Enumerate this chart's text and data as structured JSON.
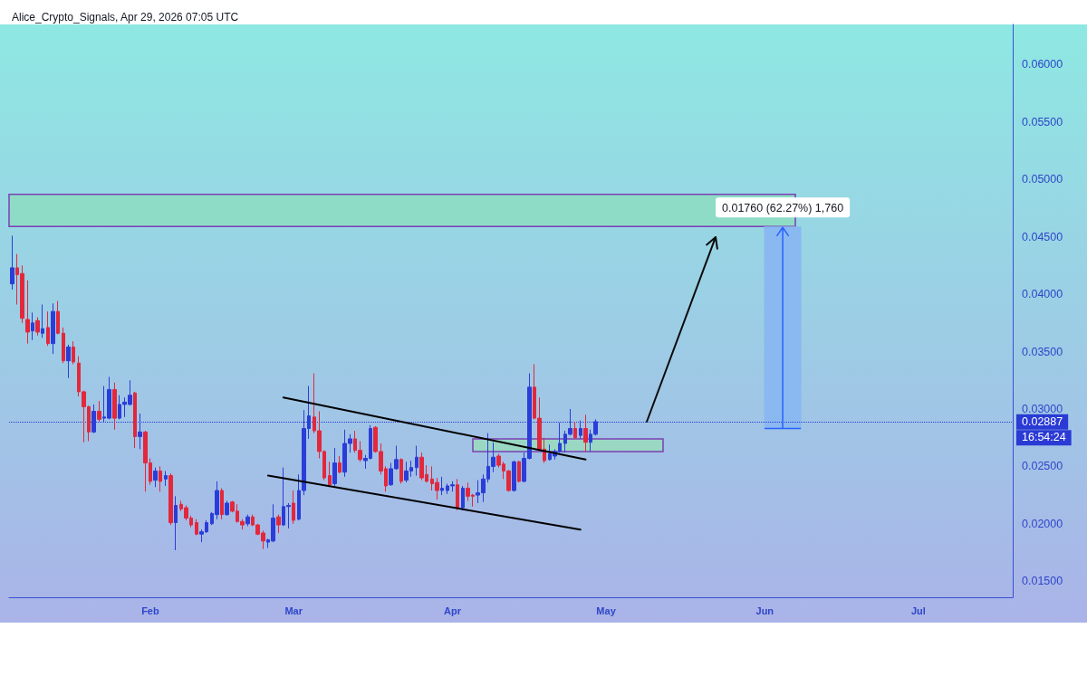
{
  "chart_data": {
    "type": "candlestick",
    "title": "Alice_Crypto_Signals, Apr 29, 2026 07:05 UTC",
    "x": [
      "2026-01-05",
      "2026-01-06",
      "2026-01-07",
      "2026-01-08",
      "2026-01-09",
      "2026-01-10",
      "2026-01-11",
      "2026-01-12",
      "2026-01-13",
      "2026-01-14",
      "2026-01-15",
      "2026-01-16",
      "2026-01-17",
      "2026-01-18",
      "2026-01-19",
      "2026-01-20",
      "2026-01-21",
      "2026-01-22",
      "2026-01-23",
      "2026-01-24",
      "2026-01-25",
      "2026-01-26",
      "2026-01-27",
      "2026-01-28",
      "2026-01-29",
      "2026-01-30",
      "2026-01-31",
      "2026-02-01",
      "2026-02-02",
      "2026-02-03",
      "2026-02-04",
      "2026-02-05",
      "2026-02-06",
      "2026-02-07",
      "2026-02-08",
      "2026-02-09",
      "2026-02-10",
      "2026-02-11",
      "2026-02-12",
      "2026-02-13",
      "2026-02-14",
      "2026-02-15",
      "2026-02-16",
      "2026-02-17",
      "2026-02-18",
      "2026-02-19",
      "2026-02-20",
      "2026-02-21",
      "2026-02-22",
      "2026-02-23",
      "2026-02-24",
      "2026-02-25",
      "2026-02-26",
      "2026-02-27",
      "2026-02-28",
      "2026-03-01",
      "2026-03-02",
      "2026-03-03",
      "2026-03-04",
      "2026-03-05",
      "2026-03-06",
      "2026-03-07",
      "2026-03-08",
      "2026-03-09",
      "2026-03-10",
      "2026-03-11",
      "2026-03-12",
      "2026-03-13",
      "2026-03-14",
      "2026-03-15",
      "2026-03-16",
      "2026-03-17",
      "2026-03-18",
      "2026-03-19",
      "2026-03-20",
      "2026-03-21",
      "2026-03-22",
      "2026-03-23",
      "2026-03-24",
      "2026-03-25",
      "2026-03-26",
      "2026-03-27",
      "2026-03-28",
      "2026-03-29",
      "2026-03-30",
      "2026-03-31",
      "2026-04-01",
      "2026-04-02",
      "2026-04-03",
      "2026-04-04",
      "2026-04-05",
      "2026-04-06",
      "2026-04-07",
      "2026-04-08",
      "2026-04-09",
      "2026-04-10",
      "2026-04-11",
      "2026-04-12",
      "2026-04-13",
      "2026-04-14",
      "2026-04-15",
      "2026-04-16",
      "2026-04-17",
      "2026-04-18",
      "2026-04-19",
      "2026-04-20",
      "2026-04-21",
      "2026-04-22",
      "2026-04-23",
      "2026-04-24",
      "2026-04-25",
      "2026-04-26",
      "2026-04-27",
      "2026-04-28",
      "2026-04-29"
    ],
    "ohlc": [
      [
        0.0409,
        0.0451,
        0.0404,
        0.0423
      ],
      [
        0.0423,
        0.0435,
        0.0391,
        0.0417
      ],
      [
        0.0418,
        0.0425,
        0.0375,
        0.0379
      ],
      [
        0.0378,
        0.0412,
        0.0357,
        0.0367
      ],
      [
        0.0368,
        0.0384,
        0.036,
        0.0375
      ],
      [
        0.0377,
        0.038,
        0.0364,
        0.0367
      ],
      [
        0.0366,
        0.0391,
        0.0362,
        0.037
      ],
      [
        0.0371,
        0.0385,
        0.0355,
        0.0357
      ],
      [
        0.0357,
        0.0392,
        0.0348,
        0.0385
      ],
      [
        0.0385,
        0.0394,
        0.0365,
        0.0366
      ],
      [
        0.0366,
        0.0371,
        0.034,
        0.0342
      ],
      [
        0.0342,
        0.0356,
        0.0327,
        0.0354
      ],
      [
        0.0354,
        0.0359,
        0.0339,
        0.0341
      ],
      [
        0.034,
        0.0346,
        0.0311,
        0.0315
      ],
      [
        0.0315,
        0.0316,
        0.0271,
        0.0302
      ],
      [
        0.0302,
        0.0303,
        0.0272,
        0.028
      ],
      [
        0.028,
        0.0304,
        0.0279,
        0.0298
      ],
      [
        0.0298,
        0.0307,
        0.0289,
        0.0291
      ],
      [
        0.0292,
        0.032,
        0.0289,
        0.0293
      ],
      [
        0.0292,
        0.0328,
        0.0291,
        0.0317
      ],
      [
        0.0317,
        0.0323,
        0.0282,
        0.0292
      ],
      [
        0.0292,
        0.0312,
        0.0291,
        0.0304
      ],
      [
        0.0304,
        0.031,
        0.0293,
        0.0306
      ],
      [
        0.0304,
        0.0325,
        0.0303,
        0.0312
      ],
      [
        0.0314,
        0.0315,
        0.0266,
        0.0276
      ],
      [
        0.0276,
        0.0296,
        0.0265,
        0.028
      ],
      [
        0.028,
        0.0281,
        0.0228,
        0.0253
      ],
      [
        0.0253,
        0.0257,
        0.0234,
        0.0237
      ],
      [
        0.0238,
        0.0249,
        0.0232,
        0.0246
      ],
      [
        0.0246,
        0.025,
        0.0228,
        0.0237
      ],
      [
        0.0239,
        0.0246,
        0.0233,
        0.0242
      ],
      [
        0.0242,
        0.0244,
        0.0199,
        0.0201
      ],
      [
        0.0201,
        0.0224,
        0.0177,
        0.0216
      ],
      [
        0.0217,
        0.022,
        0.0211,
        0.0213
      ],
      [
        0.0214,
        0.0216,
        0.0203,
        0.0205
      ],
      [
        0.0205,
        0.0207,
        0.0197,
        0.0199
      ],
      [
        0.0201,
        0.0204,
        0.019,
        0.0191
      ],
      [
        0.0191,
        0.0195,
        0.0184,
        0.0193
      ],
      [
        0.0193,
        0.0203,
        0.0192,
        0.0201
      ],
      [
        0.02,
        0.021,
        0.0199,
        0.0209
      ],
      [
        0.0208,
        0.0237,
        0.0204,
        0.0229
      ],
      [
        0.0229,
        0.0231,
        0.0204,
        0.0208
      ],
      [
        0.0208,
        0.022,
        0.0207,
        0.0218
      ],
      [
        0.0219,
        0.022,
        0.021,
        0.0211
      ],
      [
        0.0211,
        0.0217,
        0.0201,
        0.0202
      ],
      [
        0.0202,
        0.0204,
        0.0195,
        0.0199
      ],
      [
        0.02,
        0.0208,
        0.0198,
        0.0206
      ],
      [
        0.0206,
        0.0208,
        0.0198,
        0.0199
      ],
      [
        0.0199,
        0.02,
        0.019,
        0.0191
      ],
      [
        0.0192,
        0.0194,
        0.0178,
        0.0185
      ],
      [
        0.0184,
        0.0187,
        0.0179,
        0.0186
      ],
      [
        0.0185,
        0.0217,
        0.0184,
        0.0205
      ],
      [
        0.0206,
        0.0208,
        0.0192,
        0.0199
      ],
      [
        0.0199,
        0.0249,
        0.0198,
        0.0215
      ],
      [
        0.0215,
        0.0218,
        0.0196,
        0.0216
      ],
      [
        0.0218,
        0.0229,
        0.02,
        0.0203
      ],
      [
        0.0204,
        0.0243,
        0.0203,
        0.0229
      ],
      [
        0.0229,
        0.0299,
        0.0225,
        0.0283
      ],
      [
        0.0283,
        0.032,
        0.0274,
        0.0294
      ],
      [
        0.0293,
        0.0331,
        0.0279,
        0.0281
      ],
      [
        0.0281,
        0.0298,
        0.0257,
        0.0263
      ],
      [
        0.0263,
        0.0264,
        0.0238,
        0.024
      ],
      [
        0.0242,
        0.0254,
        0.0232,
        0.0234
      ],
      [
        0.0235,
        0.0266,
        0.0233,
        0.0253
      ],
      [
        0.0253,
        0.0259,
        0.0244,
        0.0245
      ],
      [
        0.0245,
        0.0282,
        0.0241,
        0.027
      ],
      [
        0.027,
        0.0278,
        0.0262,
        0.0274
      ],
      [
        0.0274,
        0.0281,
        0.0262,
        0.0264
      ],
      [
        0.0264,
        0.0272,
        0.0254,
        0.0256
      ],
      [
        0.0255,
        0.026,
        0.0248,
        0.0257
      ],
      [
        0.0257,
        0.0286,
        0.0256,
        0.0283
      ],
      [
        0.0284,
        0.0285,
        0.0262,
        0.0263
      ],
      [
        0.0263,
        0.027,
        0.0243,
        0.0246
      ],
      [
        0.0248,
        0.025,
        0.0228,
        0.0233
      ],
      [
        0.0234,
        0.0253,
        0.0233,
        0.0248
      ],
      [
        0.0248,
        0.0268,
        0.0247,
        0.0256
      ],
      [
        0.0256,
        0.0257,
        0.0235,
        0.0237
      ],
      [
        0.0238,
        0.0254,
        0.0236,
        0.0246
      ],
      [
        0.0246,
        0.0255,
        0.0241,
        0.0249
      ],
      [
        0.0249,
        0.0268,
        0.0242,
        0.0258
      ],
      [
        0.0258,
        0.0262,
        0.0238,
        0.024
      ],
      [
        0.0243,
        0.0251,
        0.0236,
        0.0237
      ],
      [
        0.0239,
        0.025,
        0.0229,
        0.0235
      ],
      [
        0.0236,
        0.024,
        0.0221,
        0.0229
      ],
      [
        0.0229,
        0.0241,
        0.0225,
        0.0231
      ],
      [
        0.0229,
        0.0235,
        0.0226,
        0.0233
      ],
      [
        0.0233,
        0.0237,
        0.0228,
        0.0234
      ],
      [
        0.0234,
        0.0239,
        0.0212,
        0.0214
      ],
      [
        0.0214,
        0.0233,
        0.0212,
        0.0231
      ],
      [
        0.0231,
        0.0236,
        0.022,
        0.0224
      ],
      [
        0.0225,
        0.0226,
        0.0215,
        0.0224
      ],
      [
        0.0225,
        0.0238,
        0.0218,
        0.0227
      ],
      [
        0.0227,
        0.0243,
        0.0219,
        0.0239
      ],
      [
        0.0239,
        0.0279,
        0.0236,
        0.025
      ],
      [
        0.025,
        0.0271,
        0.0245,
        0.0258
      ],
      [
        0.0259,
        0.0261,
        0.0249,
        0.0251
      ],
      [
        0.0252,
        0.0254,
        0.0239,
        0.0246
      ],
      [
        0.0246,
        0.0247,
        0.0228,
        0.0229
      ],
      [
        0.0229,
        0.0255,
        0.0228,
        0.0254
      ],
      [
        0.0254,
        0.0255,
        0.0236,
        0.0237
      ],
      [
        0.0237,
        0.0262,
        0.0236,
        0.0257
      ],
      [
        0.0257,
        0.0331,
        0.0256,
        0.0319
      ],
      [
        0.0319,
        0.0339,
        0.0291,
        0.0292
      ],
      [
        0.0292,
        0.031,
        0.0264,
        0.0265
      ],
      [
        0.0265,
        0.0275,
        0.0253,
        0.0255
      ],
      [
        0.0256,
        0.0269,
        0.0255,
        0.0261
      ],
      [
        0.0259,
        0.0265,
        0.0256,
        0.0263
      ],
      [
        0.0263,
        0.0288,
        0.0262,
        0.027
      ],
      [
        0.027,
        0.0281,
        0.0262,
        0.0278
      ],
      [
        0.0278,
        0.03,
        0.0277,
        0.0283
      ],
      [
        0.0283,
        0.0289,
        0.0274,
        0.0275
      ],
      [
        0.0277,
        0.029,
        0.0274,
        0.0283
      ],
      [
        0.0283,
        0.0295,
        0.0263,
        0.0271
      ],
      [
        0.0271,
        0.0282,
        0.0263,
        0.0278
      ],
      [
        0.0278,
        0.0291,
        0.0277,
        0.0289
      ]
    ],
    "colors": [
      "#2b3dd8",
      "#e3283c",
      "#e3283c",
      "#e3283c",
      "#2b3dd8",
      "#e3283c",
      "#2b3dd8",
      "#e3283c",
      "#2b3dd8",
      "#e3283c",
      "#e3283c",
      "#2b3dd8",
      "#e3283c",
      "#e3283c",
      "#e3283c",
      "#e3283c",
      "#2b3dd8",
      "#e3283c",
      "#2b3dd8",
      "#2b3dd8",
      "#e3283c",
      "#2b3dd8",
      "#2b3dd8",
      "#2b3dd8",
      "#e3283c",
      "#2b3dd8",
      "#e3283c",
      "#e3283c",
      "#2b3dd8",
      "#e3283c",
      "#2b3dd8",
      "#e3283c",
      "#2b3dd8",
      "#e3283c",
      "#e3283c",
      "#e3283c",
      "#e3283c",
      "#2b3dd8",
      "#2b3dd8",
      "#2b3dd8",
      "#2b3dd8",
      "#e3283c",
      "#2b3dd8",
      "#e3283c",
      "#e3283c",
      "#e3283c",
      "#2b3dd8",
      "#e3283c",
      "#e3283c",
      "#e3283c",
      "#2b3dd8",
      "#2b3dd8",
      "#e3283c",
      "#2b3dd8",
      "#2b3dd8",
      "#e3283c",
      "#2b3dd8",
      "#2b3dd8",
      "#2b3dd8",
      "#e3283c",
      "#e3283c",
      "#e3283c",
      "#e3283c",
      "#2b3dd8",
      "#e3283c",
      "#2b3dd8",
      "#2b3dd8",
      "#e3283c",
      "#e3283c",
      "#2b3dd8",
      "#2b3dd8",
      "#e3283c",
      "#e3283c",
      "#e3283c",
      "#2b3dd8",
      "#2b3dd8",
      "#e3283c",
      "#2b3dd8",
      "#2b3dd8",
      "#2b3dd8",
      "#e3283c",
      "#e3283c",
      "#e3283c",
      "#e3283c",
      "#2b3dd8",
      "#2b3dd8",
      "#2b3dd8",
      "#e3283c",
      "#2b3dd8",
      "#e3283c",
      "#e3283c",
      "#2b3dd8",
      "#2b3dd8",
      "#2b3dd8",
      "#2b3dd8",
      "#e3283c",
      "#e3283c",
      "#e3283c",
      "#2b3dd8",
      "#e3283c",
      "#2b3dd8",
      "#2b3dd8",
      "#e3283c",
      "#e3283c",
      "#e3283c",
      "#2b3dd8",
      "#2b3dd8",
      "#2b3dd8",
      "#2b3dd8",
      "#2b3dd8",
      "#e3283c",
      "#2b3dd8",
      "#e3283c",
      "#2b3dd8",
      "#2b3dd8"
    ],
    "series": [
      {
        "type": "line",
        "x": [
          "2026-02-27",
          "2026-04-27"
        ],
        "values": [
          0.031,
          0.0256
        ],
        "color": "#000000"
      },
      {
        "type": "line",
        "x": [
          "2026-02-24",
          "2026-04-26"
        ],
        "values": [
          0.0242,
          0.0195
        ],
        "color": "#000000"
      },
      {
        "type": "bar",
        "x": [
          "2026-06-04T12:00"
        ],
        "base": [
          0.0283
        ],
        "values": [
          0.0176
        ],
        "value_labels": [
          "0.01760 (62.27%) 1,760"
        ],
        "color": "#8ab8f0"
      }
    ],
    "xlim": [
      "2026-01-04T10:00",
      "2026-07-19T10:00"
    ],
    "xticks": [
      {
        "value": "2026-02-01",
        "label": "Feb"
      },
      {
        "value": "2026-03-01",
        "label": "Mar"
      },
      {
        "value": "2026-04-01",
        "label": "Apr"
      },
      {
        "value": "2026-05-01",
        "label": "May"
      },
      {
        "value": "2026-06-01",
        "label": "Jun"
      },
      {
        "value": "2026-07-01",
        "label": "Jul"
      }
    ],
    "ylim": [
      0.0136,
      0.0635
    ],
    "yticks": [
      {
        "value": 0.015,
        "label": "0.01500"
      },
      {
        "value": 0.02,
        "label": "0.02000"
      },
      {
        "value": 0.025,
        "label": "0.02500"
      },
      {
        "value": 0.03,
        "label": "0.03000"
      },
      {
        "value": 0.035,
        "label": "0.03500"
      },
      {
        "value": 0.04,
        "label": "0.04000"
      },
      {
        "value": 0.045,
        "label": "0.04500"
      },
      {
        "value": 0.05,
        "label": "0.05000"
      },
      {
        "value": 0.055,
        "label": "0.05500"
      },
      {
        "value": 0.06,
        "label": "0.06000"
      }
    ],
    "ref_lines": [
      {
        "axis": "y",
        "value": 0.02887,
        "label": "0.02887",
        "color": "#2a3ad4",
        "line_style": "dotted"
      }
    ],
    "bands": [
      {
        "axis": "y",
        "from": 0.0459,
        "to": 0.0487,
        "color": "#8edcc6"
      },
      {
        "axis": "y",
        "from": 0.0263,
        "to": 0.0274,
        "color": "#9ad8c4"
      }
    ],
    "annotations": [
      "16:54:24"
    ]
  }
}
